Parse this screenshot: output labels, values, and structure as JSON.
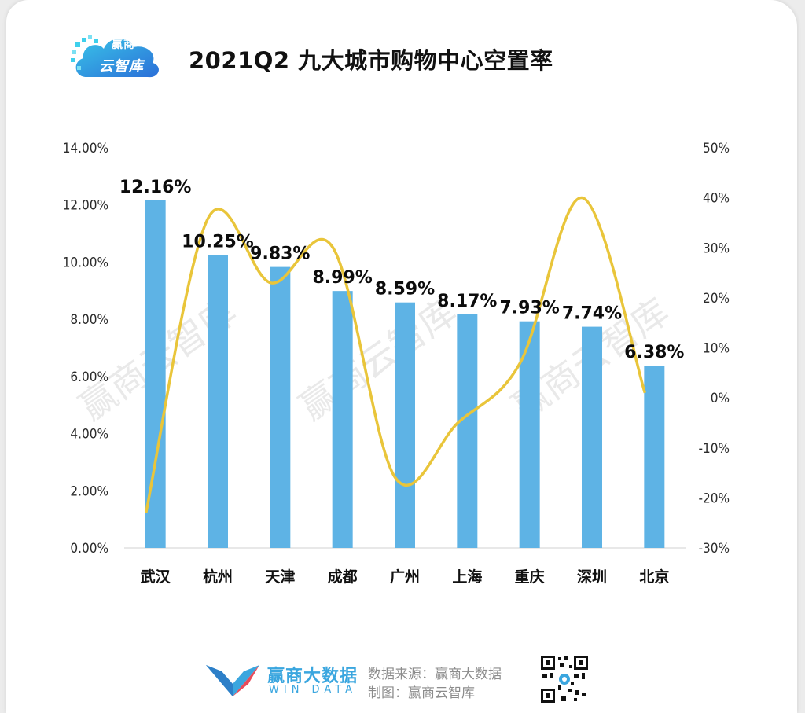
{
  "header": {
    "logo_line1": "赢商",
    "logo_line2": "云智库",
    "title": "2021Q2 九大城市购物中心空置率"
  },
  "chart_data": {
    "type": "bar",
    "title": "2021Q2 九大城市购物中心空置率",
    "categories": [
      "武汉",
      "杭州",
      "天津",
      "成都",
      "广州",
      "上海",
      "重庆",
      "深圳",
      "北京"
    ],
    "series": [
      {
        "type": "bar",
        "axis": "left",
        "color": "#5eb3e5",
        "values": [
          12.16,
          10.25,
          9.83,
          8.99,
          8.59,
          8.17,
          7.93,
          7.74,
          6.38
        ],
        "labels": [
          "12.16%",
          "10.25%",
          "9.83%",
          "8.99%",
          "8.59%",
          "8.17%",
          "7.93%",
          "7.74%",
          "6.38%"
        ]
      },
      {
        "type": "line",
        "axis": "right",
        "color": "#e9c53a",
        "smooth": true,
        "values": [
          -23,
          36,
          23,
          30,
          -16,
          -5,
          7,
          40,
          1
        ]
      }
    ],
    "y_left": {
      "min": 0,
      "max": 14,
      "step": 2,
      "tick_labels": [
        "0.00%",
        "2.00%",
        "4.00%",
        "6.00%",
        "8.00%",
        "10.00%",
        "12.00%",
        "14.00%"
      ]
    },
    "y_right": {
      "min": -30,
      "max": 50,
      "step": 10,
      "tick_labels": [
        "-30%",
        "-20%",
        "-10%",
        "0%",
        "10%",
        "20%",
        "30%",
        "40%",
        "50%"
      ]
    },
    "grid": false,
    "watermark": "赢商云智库"
  },
  "footer": {
    "brand_name": "赢商大数据",
    "brand_en": "WIN DATA",
    "source": "数据来源：赢商大数据",
    "maker": "制图：赢商云智库"
  },
  "colors": {
    "bar": "#5eb3e5",
    "line": "#e9c53a",
    "brand": "#3aa6df"
  }
}
